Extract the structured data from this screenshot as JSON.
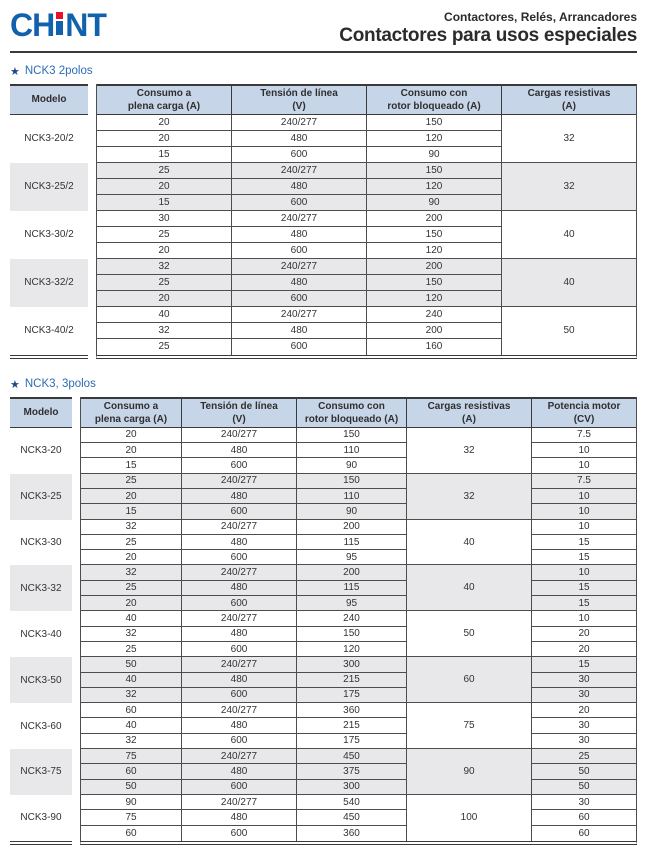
{
  "page": {
    "header": {
      "logo_ch": "CH",
      "logo_nt": "NT",
      "subtitle": "Contactores, Relés, Arrancadores",
      "title": "Contactores para usos especiales"
    },
    "colors": {
      "chint_blue": "#1162ad",
      "chint_red": "#e8112d",
      "table_header_band": "#c7d5e8",
      "row_alt_gray": "#e8e8ea",
      "section_title_blue": "#2d6cb5",
      "star_navy": "#1b4a8a",
      "border_dark": "#3a3a3a"
    }
  },
  "sections": [
    {
      "star": "★",
      "title": "NCK3 2polos",
      "table": {
        "has_potencia": false,
        "columns": [
          [
            "Modelo"
          ],
          [
            "Consumo a",
            "plena carga (A)"
          ],
          [
            "Tensión de línea",
            "(V)"
          ],
          [
            "Consumo con",
            "rotor bloqueado (A)"
          ],
          [
            "Cargas resistivas",
            "(A)"
          ]
        ],
        "groups": [
          {
            "model": "NCK3-20/2",
            "cargas": "32",
            "rows": [
              [
                "20",
                "240/277",
                "150"
              ],
              [
                "20",
                "480",
                "120"
              ],
              [
                "15",
                "600",
                "90"
              ]
            ]
          },
          {
            "model": "NCK3-25/2",
            "cargas": "32",
            "rows": [
              [
                "25",
                "240/277",
                "150"
              ],
              [
                "20",
                "480",
                "120"
              ],
              [
                "15",
                "600",
                "90"
              ]
            ]
          },
          {
            "model": "NCK3-30/2",
            "cargas": "40",
            "rows": [
              [
                "30",
                "240/277",
                "200"
              ],
              [
                "25",
                "480",
                "150"
              ],
              [
                "20",
                "600",
                "120"
              ]
            ]
          },
          {
            "model": "NCK3-32/2",
            "cargas": "40",
            "rows": [
              [
                "32",
                "240/277",
                "200"
              ],
              [
                "25",
                "480",
                "150"
              ],
              [
                "20",
                "600",
                "120"
              ]
            ]
          },
          {
            "model": "NCK3-40/2",
            "cargas": "50",
            "rows": [
              [
                "40",
                "240/277",
                "240"
              ],
              [
                "32",
                "480",
                "200"
              ],
              [
                "25",
                "600",
                "160"
              ]
            ]
          }
        ]
      }
    },
    {
      "star": "★",
      "title": "NCK3, 3polos",
      "table": {
        "has_potencia": true,
        "columns": [
          [
            "Modelo"
          ],
          [
            "Consumo a",
            "plena carga (A)"
          ],
          [
            "Tensión de línea",
            "(V)"
          ],
          [
            "Consumo con",
            "rotor bloqueado (A)"
          ],
          [
            "Cargas resistivas",
            "(A)"
          ],
          [
            "Potencia motor",
            "(CV)"
          ]
        ],
        "groups": [
          {
            "model": "NCK3-20",
            "cargas": "32",
            "rows": [
              [
                "20",
                "240/277",
                "150",
                "7.5"
              ],
              [
                "20",
                "480",
                "110",
                "10"
              ],
              [
                "15",
                "600",
                "90",
                "10"
              ]
            ]
          },
          {
            "model": "NCK3-25",
            "cargas": "32",
            "rows": [
              [
                "25",
                "240/277",
                "150",
                "7.5"
              ],
              [
                "20",
                "480",
                "110",
                "10"
              ],
              [
                "15",
                "600",
                "90",
                "10"
              ]
            ]
          },
          {
            "model": "NCK3-30",
            "cargas": "40",
            "rows": [
              [
                "32",
                "240/277",
                "200",
                "10"
              ],
              [
                "25",
                "480",
                "115",
                "15"
              ],
              [
                "20",
                "600",
                "95",
                "15"
              ]
            ]
          },
          {
            "model": "NCK3-32",
            "cargas": "40",
            "rows": [
              [
                "32",
                "240/277",
                "200",
                "10"
              ],
              [
                "25",
                "480",
                "115",
                "15"
              ],
              [
                "20",
                "600",
                "95",
                "15"
              ]
            ]
          },
          {
            "model": "NCK3-40",
            "cargas": "50",
            "rows": [
              [
                "40",
                "240/277",
                "240",
                "10"
              ],
              [
                "32",
                "480",
                "150",
                "20"
              ],
              [
                "25",
                "600",
                "120",
                "20"
              ]
            ]
          },
          {
            "model": "NCK3-50",
            "cargas": "60",
            "rows": [
              [
                "50",
                "240/277",
                "300",
                "15"
              ],
              [
                "40",
                "480",
                "215",
                "30"
              ],
              [
                "32",
                "600",
                "175",
                "30"
              ]
            ]
          },
          {
            "model": "NCK3-60",
            "cargas": "75",
            "rows": [
              [
                "60",
                "240/277",
                "360",
                "20"
              ],
              [
                "40",
                "480",
                "215",
                "30"
              ],
              [
                "32",
                "600",
                "175",
                "30"
              ]
            ]
          },
          {
            "model": "NCK3-75",
            "cargas": "90",
            "rows": [
              [
                "75",
                "240/277",
                "450",
                "25"
              ],
              [
                "60",
                "480",
                "375",
                "50"
              ],
              [
                "50",
                "600",
                "300",
                "50"
              ]
            ]
          },
          {
            "model": "NCK3-90",
            "cargas": "100",
            "rows": [
              [
                "90",
                "240/277",
                "540",
                "30"
              ],
              [
                "75",
                "480",
                "450",
                "60"
              ],
              [
                "60",
                "600",
                "360",
                "60"
              ]
            ]
          }
        ]
      }
    }
  ]
}
